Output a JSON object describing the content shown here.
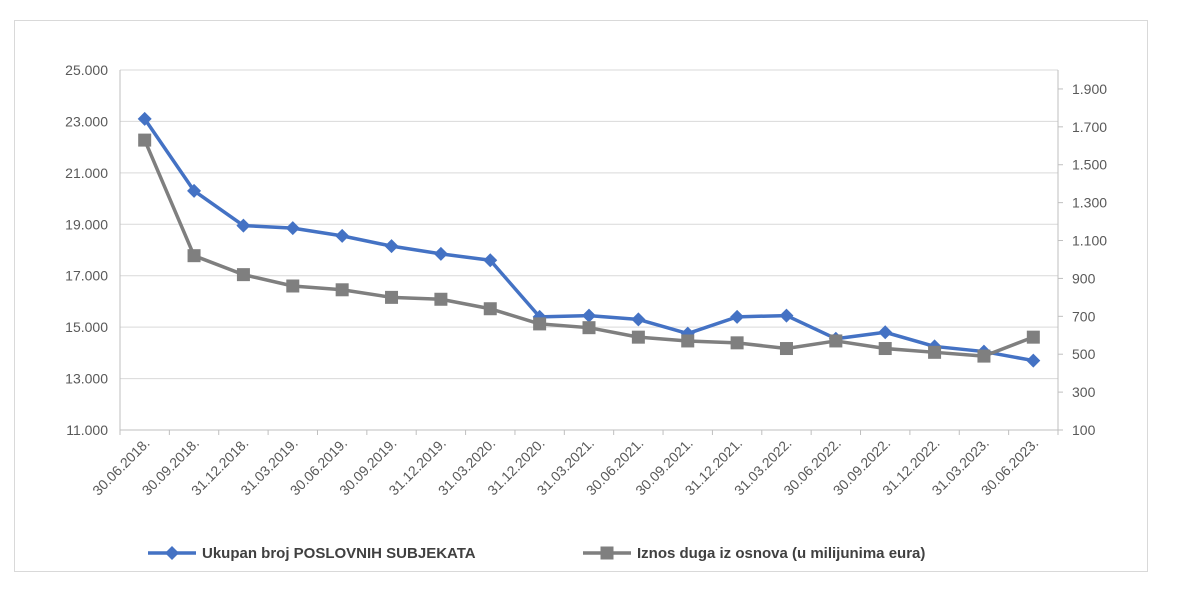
{
  "chart_data": {
    "type": "line",
    "title": "",
    "categories": [
      "30.06.2018.",
      "30.09.2018.",
      "31.12.2018.",
      "31.03.2019.",
      "30.06.2019.",
      "30.09.2019.",
      "31.12.2019.",
      "31.03.2020.",
      "31.12.2020.",
      "31.03.2021.",
      "30.06.2021.",
      "30.09.2021.",
      "31.12.2021.",
      "31.03.2022.",
      "30.06.2022.",
      "30.09.2022.",
      "31.12.2022.",
      "31.03.2023.",
      "30.06.2023."
    ],
    "y_left": {
      "min": 11000,
      "max": 25000,
      "ticks": [
        "25.000",
        "23.000",
        "21.000",
        "19.000",
        "17.000",
        "15.000",
        "13.000",
        "11.000"
      ]
    },
    "y_right": {
      "min": 100,
      "max": 2000,
      "ticks": [
        "1.900",
        "1.700",
        "1.500",
        "1.300",
        "1.100",
        "900",
        "700",
        "500",
        "300",
        "100"
      ]
    },
    "legend_position": "bottom",
    "grid": true,
    "series": [
      {
        "name": "Ukupan broj POSLOVNIH SUBJEKATA",
        "axis": "left",
        "color": "#4472c4",
        "marker": "diamond",
        "values": [
          23100,
          20300,
          18950,
          18850,
          18550,
          18150,
          17850,
          17600,
          15400,
          15450,
          15300,
          14750,
          15400,
          15450,
          14550,
          14800,
          14250,
          14050,
          13700
        ]
      },
      {
        "name": "Iznos duga iz osnova (u milijunima eura)",
        "axis": "right",
        "color": "#7f7f7f",
        "marker": "square",
        "values": [
          1630,
          1020,
          920,
          860,
          840,
          800,
          790,
          740,
          660,
          640,
          590,
          570,
          560,
          530,
          570,
          530,
          510,
          490,
          590
        ]
      }
    ]
  }
}
